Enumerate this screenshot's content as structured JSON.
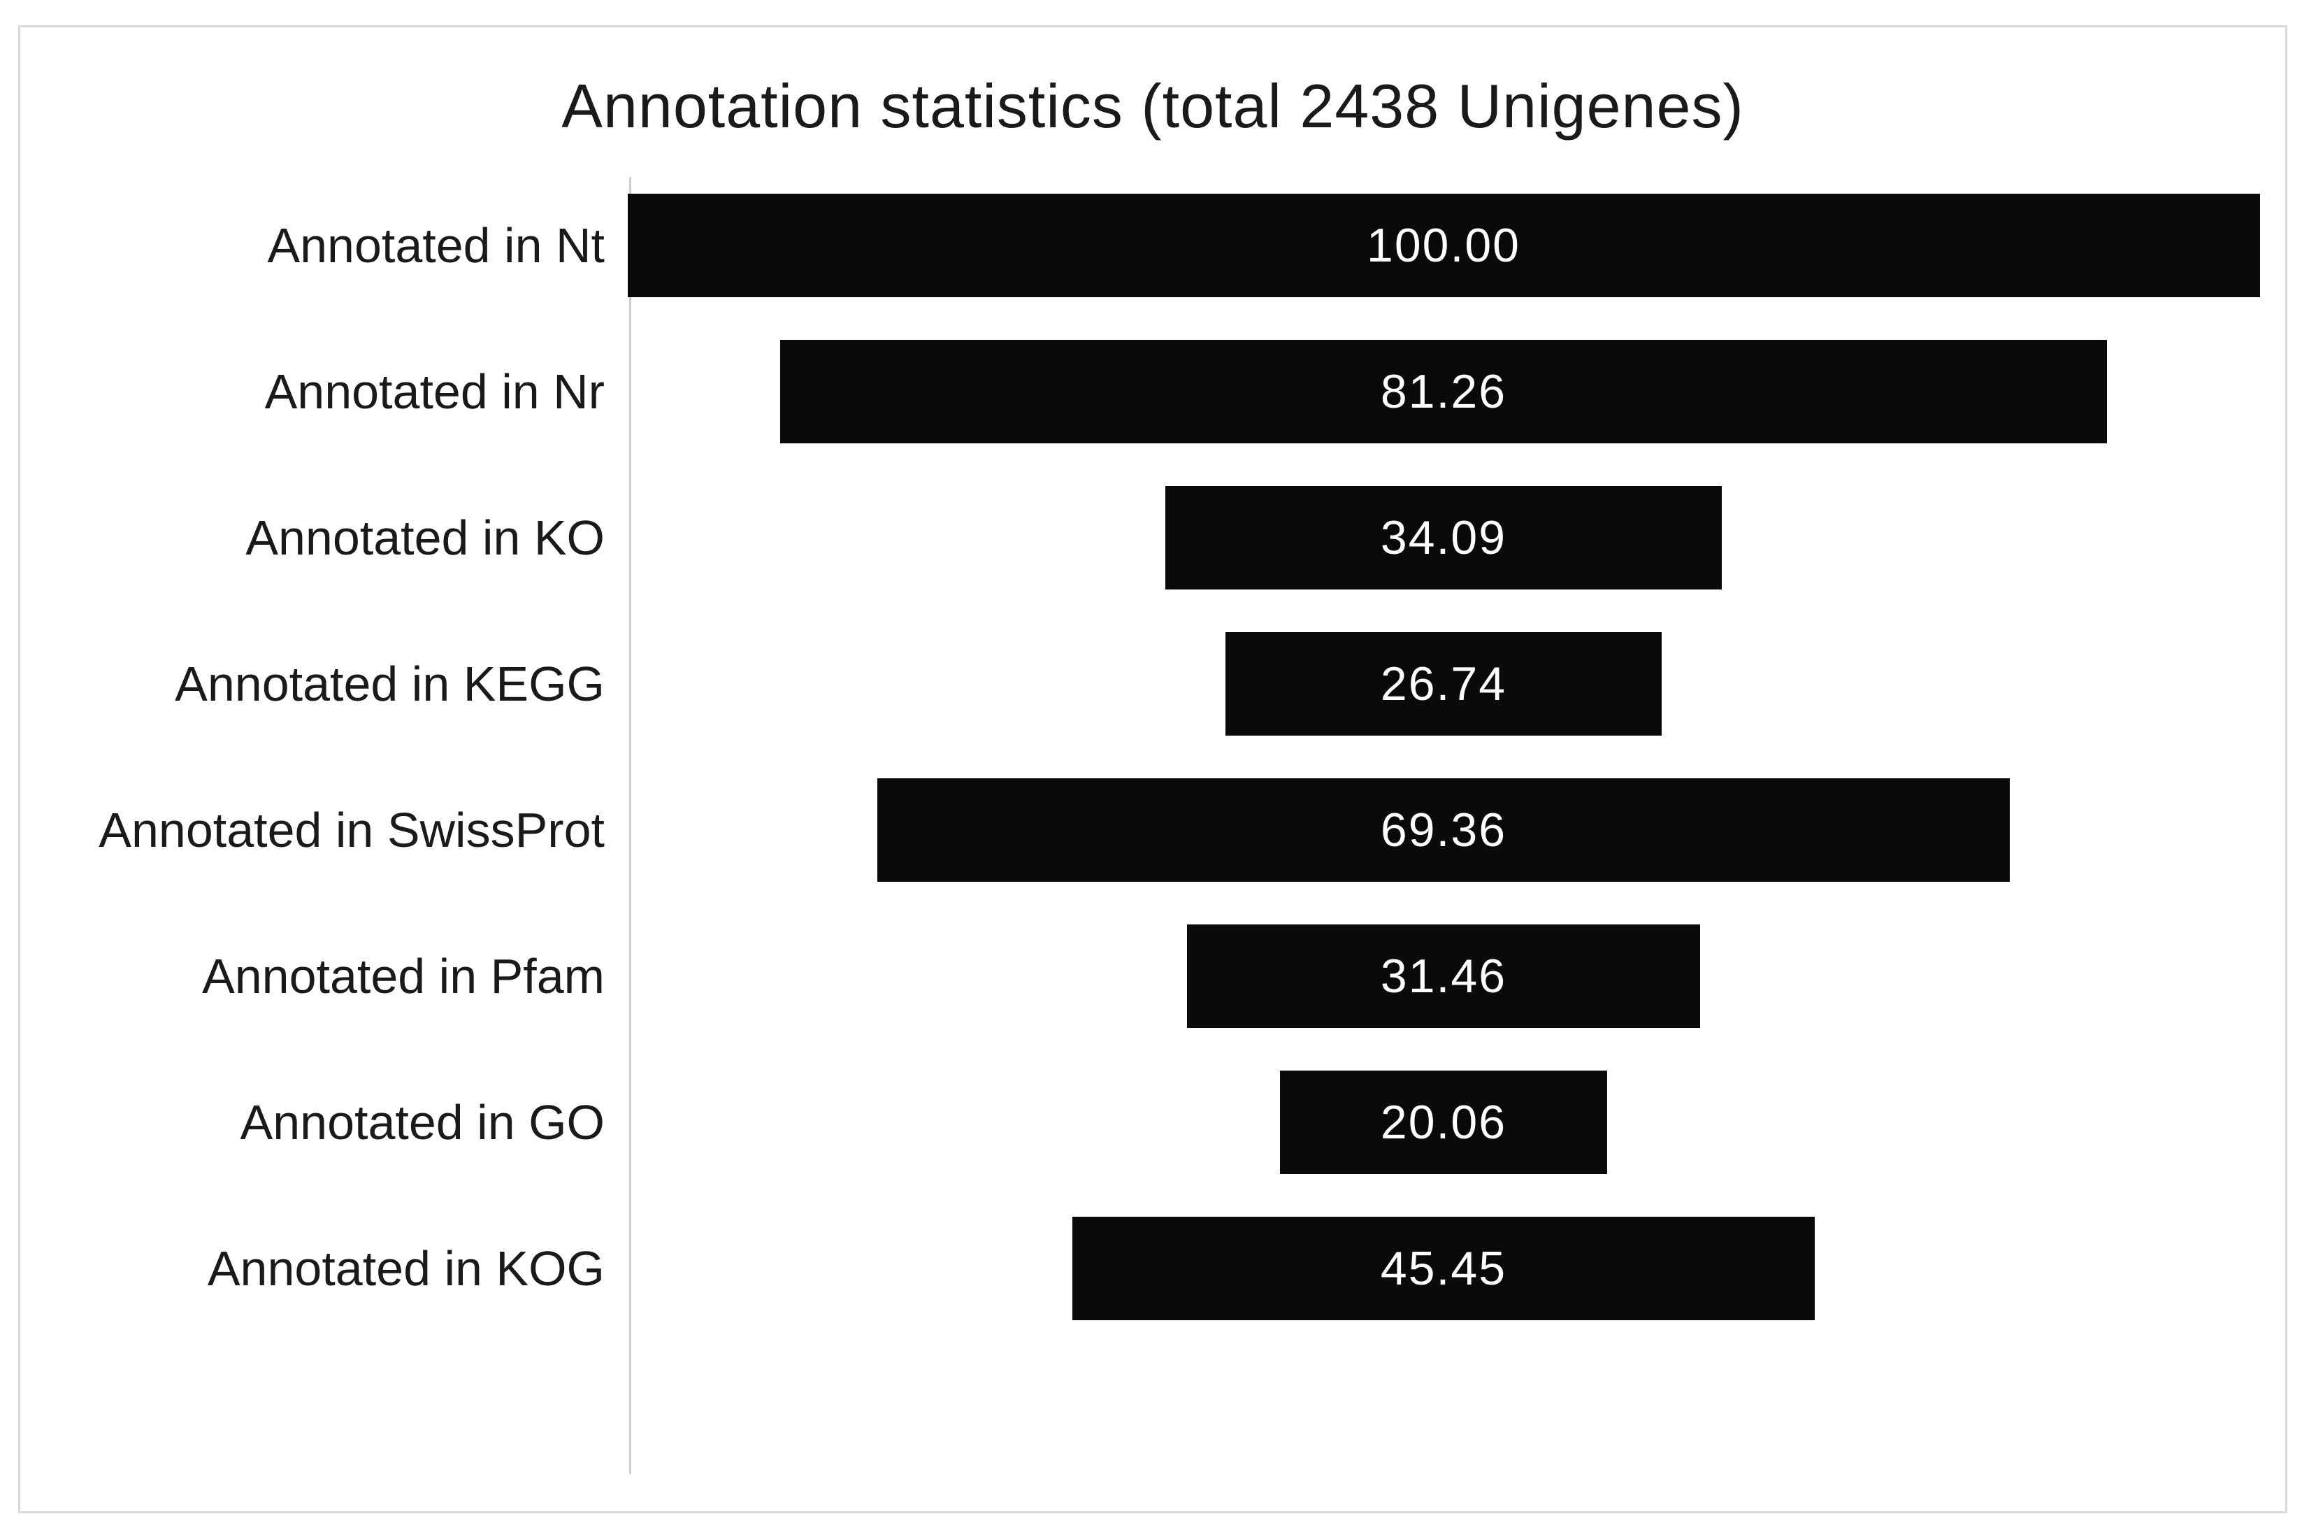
{
  "chart_data": {
    "type": "bar",
    "orientation": "horizontal",
    "alignment": "bars centered on common vertical midline (funnel style)",
    "title": "Annotation statistics (total 2438 Unigenes)",
    "categories": [
      "Annotated in Nt",
      "Annotated in Nr",
      "Annotated in KO",
      "Annotated in KEGG",
      "Annotated in SwissProt",
      "Annotated in Pfam",
      "Annotated in GO",
      "Annotated in KOG"
    ],
    "values": [
      100.0,
      81.26,
      34.09,
      26.74,
      69.36,
      31.46,
      20.06,
      45.45
    ],
    "value_labels": [
      "100.00",
      "81.26",
      "34.09",
      "26.74",
      "69.36",
      "31.46",
      "20.06",
      "45.45"
    ],
    "value_unit": "percent of 2438 Unigenes",
    "xlim": [
      0,
      100
    ],
    "grid": false,
    "legend": "none",
    "colors": {
      "bar_fill": "#0a0a0a",
      "bar_value_text": "#ffffff",
      "label_text": "#1a1a1a",
      "axis_line": "#cfcfcf",
      "figure_border": "#d9d9d9",
      "background": "#ffffff"
    }
  }
}
